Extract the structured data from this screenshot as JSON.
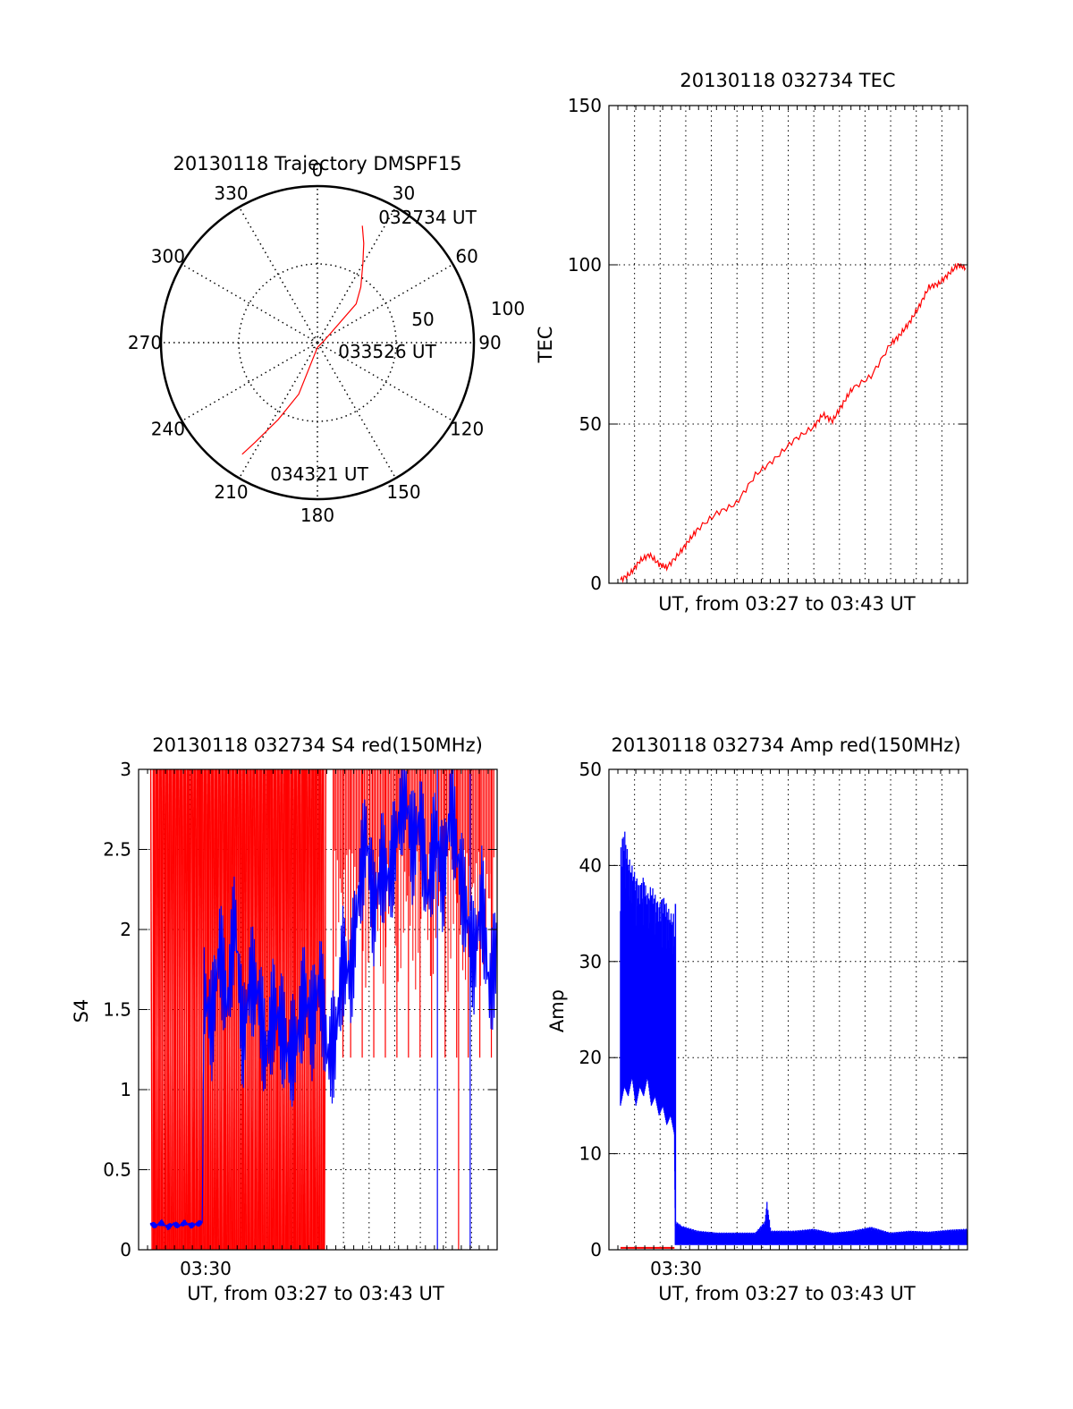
{
  "colors": {
    "red": "#ff0000",
    "blue": "#0000ff",
    "axis": "#000000",
    "grid": "#000000"
  },
  "chart_data": [
    {
      "type": "polar-trajectory",
      "title": "20130118 Trajectory DMSPF15",
      "azimuth_ticks": [
        "0",
        "30",
        "60",
        "90",
        "120",
        "150",
        "180",
        "210",
        "240",
        "270",
        "300",
        "330"
      ],
      "radius_ticks": [
        "50",
        "100"
      ],
      "series": [
        {
          "color": "red",
          "points": [
            [
              21,
              80
            ],
            [
              25,
              70
            ],
            [
              30,
              58
            ],
            [
              38,
              45
            ],
            [
              45,
              35
            ],
            [
              70,
              5
            ],
            [
              180,
              3
            ],
            [
              200,
              35
            ],
            [
              207,
              55
            ],
            [
              212,
              75
            ],
            [
              214,
              86
            ]
          ]
        }
      ],
      "annotations": [
        "032734 UT",
        "033526 UT",
        "034321 UT"
      ]
    },
    {
      "type": "line",
      "title": "20130118 032734 TEC",
      "xlabel": "UT, from 03:27 to 03:43 UT",
      "ylabel": "TEC",
      "ylim": [
        0,
        150
      ],
      "yticks": [
        "0",
        "50",
        "100",
        "150"
      ],
      "series": [
        {
          "color": "red",
          "x_minutes": [
            0,
            0.5,
            1,
            1.5,
            2,
            2.4,
            3,
            3.5,
            4,
            5,
            6,
            7,
            8,
            9,
            10,
            10.5,
            11,
            11.5,
            12,
            13,
            14,
            14.5,
            15,
            15.5,
            16,
            16.5,
            17,
            17.5,
            17.9
          ],
          "values": [
            1,
            3,
            7,
            9,
            6,
            5,
            9,
            13,
            17,
            22,
            25,
            34,
            39,
            45,
            49,
            53,
            51,
            56,
            61,
            65,
            75,
            78,
            82,
            87,
            93,
            94,
            97,
            100,
            99
          ]
        }
      ]
    },
    {
      "type": "line",
      "title": "20130118 032734 S4 red(150MHz)",
      "xlabel": "UT, from 03:27 to 03:43 UT",
      "ylabel": "S4",
      "ylim": [
        0,
        3
      ],
      "yticks": [
        "0",
        "0.5",
        "1",
        "1.5",
        "2",
        "2.5",
        "3"
      ],
      "xticks": [
        "03:30"
      ],
      "series": [
        {
          "color": "blue",
          "x_minutes": [
            0,
            0.3,
            0.6,
            0.9,
            1.2,
            1.5,
            1.8,
            2.1,
            2.4,
            2.7,
            2.8,
            3.2,
            3.6,
            4,
            4.4,
            4.8,
            5.2,
            5.6,
            6,
            6.4,
            6.8,
            7.2,
            7.6,
            8,
            8.4,
            8.8,
            9.2,
            9.6,
            10,
            10.4,
            10.8,
            11.2,
            11.6,
            12,
            12.4,
            12.8,
            13.2,
            13.6,
            14,
            14.4,
            14.8,
            15.2,
            15.6,
            16,
            16.4,
            16.8,
            17.2,
            17.6,
            18
          ],
          "values": [
            0.16,
            0.15,
            0.17,
            0.14,
            0.16,
            0.15,
            0.17,
            0.15,
            0.16,
            0.17,
            1.6,
            1.4,
            1.9,
            1.5,
            2.1,
            1.3,
            1.7,
            1.6,
            1.2,
            1.5,
            1.4,
            1.2,
            1.3,
            1.6,
            1.4,
            1.7,
            1.2,
            1.3,
            1.8,
            1.7,
            2.2,
            2.6,
            2.1,
            2.4,
            2.3,
            2.6,
            2.9,
            2.5,
            2.7,
            2.2,
            2.6,
            2.3,
            2.8,
            2.4,
            2.1,
            1.8,
            2.2,
            1.6,
            1.9
          ]
        },
        {
          "color": "red",
          "note_saturated": "spikes to 3",
          "x_minutes": [
            0.2,
            0.5,
            0.9,
            1.3,
            1.6,
            2.0,
            2.3,
            2.6,
            3.0,
            3.4,
            3.9,
            4.3,
            4.8,
            5.2,
            5.7,
            6.2,
            6.6,
            7.1,
            7.5,
            8.0,
            8.5,
            9.0,
            9.5,
            10.0,
            10.4,
            11.0,
            11.6,
            12.2,
            12.8,
            13.4,
            14.0,
            14.6,
            15.3,
            15.9,
            16.5,
            17.1,
            17.7
          ],
          "values": [
            3,
            3,
            3,
            3,
            3,
            3,
            3,
            3,
            3,
            3,
            3,
            3,
            3,
            3,
            3,
            3,
            3,
            3,
            3,
            3,
            3,
            3,
            3,
            3,
            3,
            3,
            3,
            3,
            3,
            3,
            3,
            3,
            3,
            3,
            3,
            3,
            3
          ]
        }
      ]
    },
    {
      "type": "line",
      "title": "20130118 032734 Amp red(150MHz)",
      "xlabel": "UT, from 03:27 to 03:43 UT",
      "ylabel": "Amp",
      "ylim": [
        0,
        50
      ],
      "yticks": [
        "0",
        "10",
        "20",
        "30",
        "40",
        "50"
      ],
      "xticks": [
        "03:30"
      ],
      "series": [
        {
          "color": "blue",
          "x_minutes": [
            0,
            0.2,
            0.4,
            0.6,
            0.8,
            1.0,
            1.2,
            1.4,
            1.6,
            1.8,
            2.0,
            2.2,
            2.4,
            2.6,
            2.8,
            2.85,
            3.2,
            4,
            5,
            6,
            7,
            7.5,
            7.6,
            7.8,
            9,
            10,
            11,
            12,
            13,
            14,
            15,
            16,
            17,
            18
          ],
          "values_min": [
            15,
            17,
            16,
            18,
            15,
            17,
            16,
            18,
            15,
            16,
            14,
            15,
            13,
            14,
            12,
            0.5,
            0.5,
            0.5,
            0.5,
            0.5,
            0.5,
            0.5,
            0.5,
            0.5,
            0.5,
            0.5,
            0.5,
            0.5,
            0.5,
            0.5,
            0.5,
            0.5,
            0.5,
            0.5
          ],
          "values_max": [
            42,
            44,
            41,
            40,
            39,
            38,
            39,
            37,
            38,
            37,
            36,
            37,
            36,
            35,
            35,
            3,
            2.5,
            2,
            1.8,
            1.8,
            1.8,
            3,
            5,
            2,
            2,
            2.2,
            1.8,
            2,
            2.4,
            1.8,
            2,
            1.9,
            2.1,
            2.2
          ]
        },
        {
          "color": "red",
          "x_minutes": [
            0,
            2.8
          ],
          "values": [
            0.2,
            0.2
          ]
        }
      ]
    }
  ]
}
